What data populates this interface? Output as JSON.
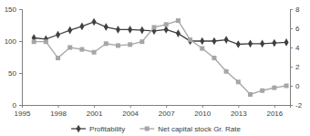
{
  "chart_data": {
    "type": "line",
    "x": [
      1996,
      1997,
      1998,
      1999,
      2000,
      2001,
      2002,
      2003,
      2004,
      2005,
      2006,
      2007,
      2008,
      2009,
      2010,
      2011,
      2012,
      2013,
      2014,
      2015,
      2016,
      2017
    ],
    "series": [
      {
        "name": "Profitability",
        "color": "#404040",
        "marker": "diamond",
        "values": [
          105,
          103,
          110,
          117,
          123,
          130,
          122,
          118,
          118,
          117,
          116,
          118,
          112,
          100,
          100,
          100,
          102,
          95,
          96,
          96,
          97,
          98
        ]
      },
      {
        "name": "Net capital stock Gr. Rate",
        "color": "#a6a6a6",
        "marker": "square",
        "axis": "y2",
        "values": [
          4.6,
          4.6,
          2.9,
          4.0,
          3.8,
          3.5,
          4.4,
          4.2,
          4.3,
          4.6,
          6.1,
          6.4,
          6.8,
          4.8,
          3.9,
          2.9,
          1.5,
          0.4,
          -0.9,
          -0.5,
          -0.2,
          0.0
        ]
      }
    ],
    "xlim": [
      1995,
      2017.3
    ],
    "xticks": [
      1995,
      1998,
      2001,
      2004,
      2007,
      2010,
      2013,
      2016
    ],
    "ylim": [
      0,
      150
    ],
    "yticks": [
      0,
      50,
      100,
      150
    ],
    "y2lim": [
      -2,
      8
    ],
    "y2ticks": [
      -2,
      0,
      2,
      4,
      6,
      8
    ],
    "legend": "bottom"
  }
}
